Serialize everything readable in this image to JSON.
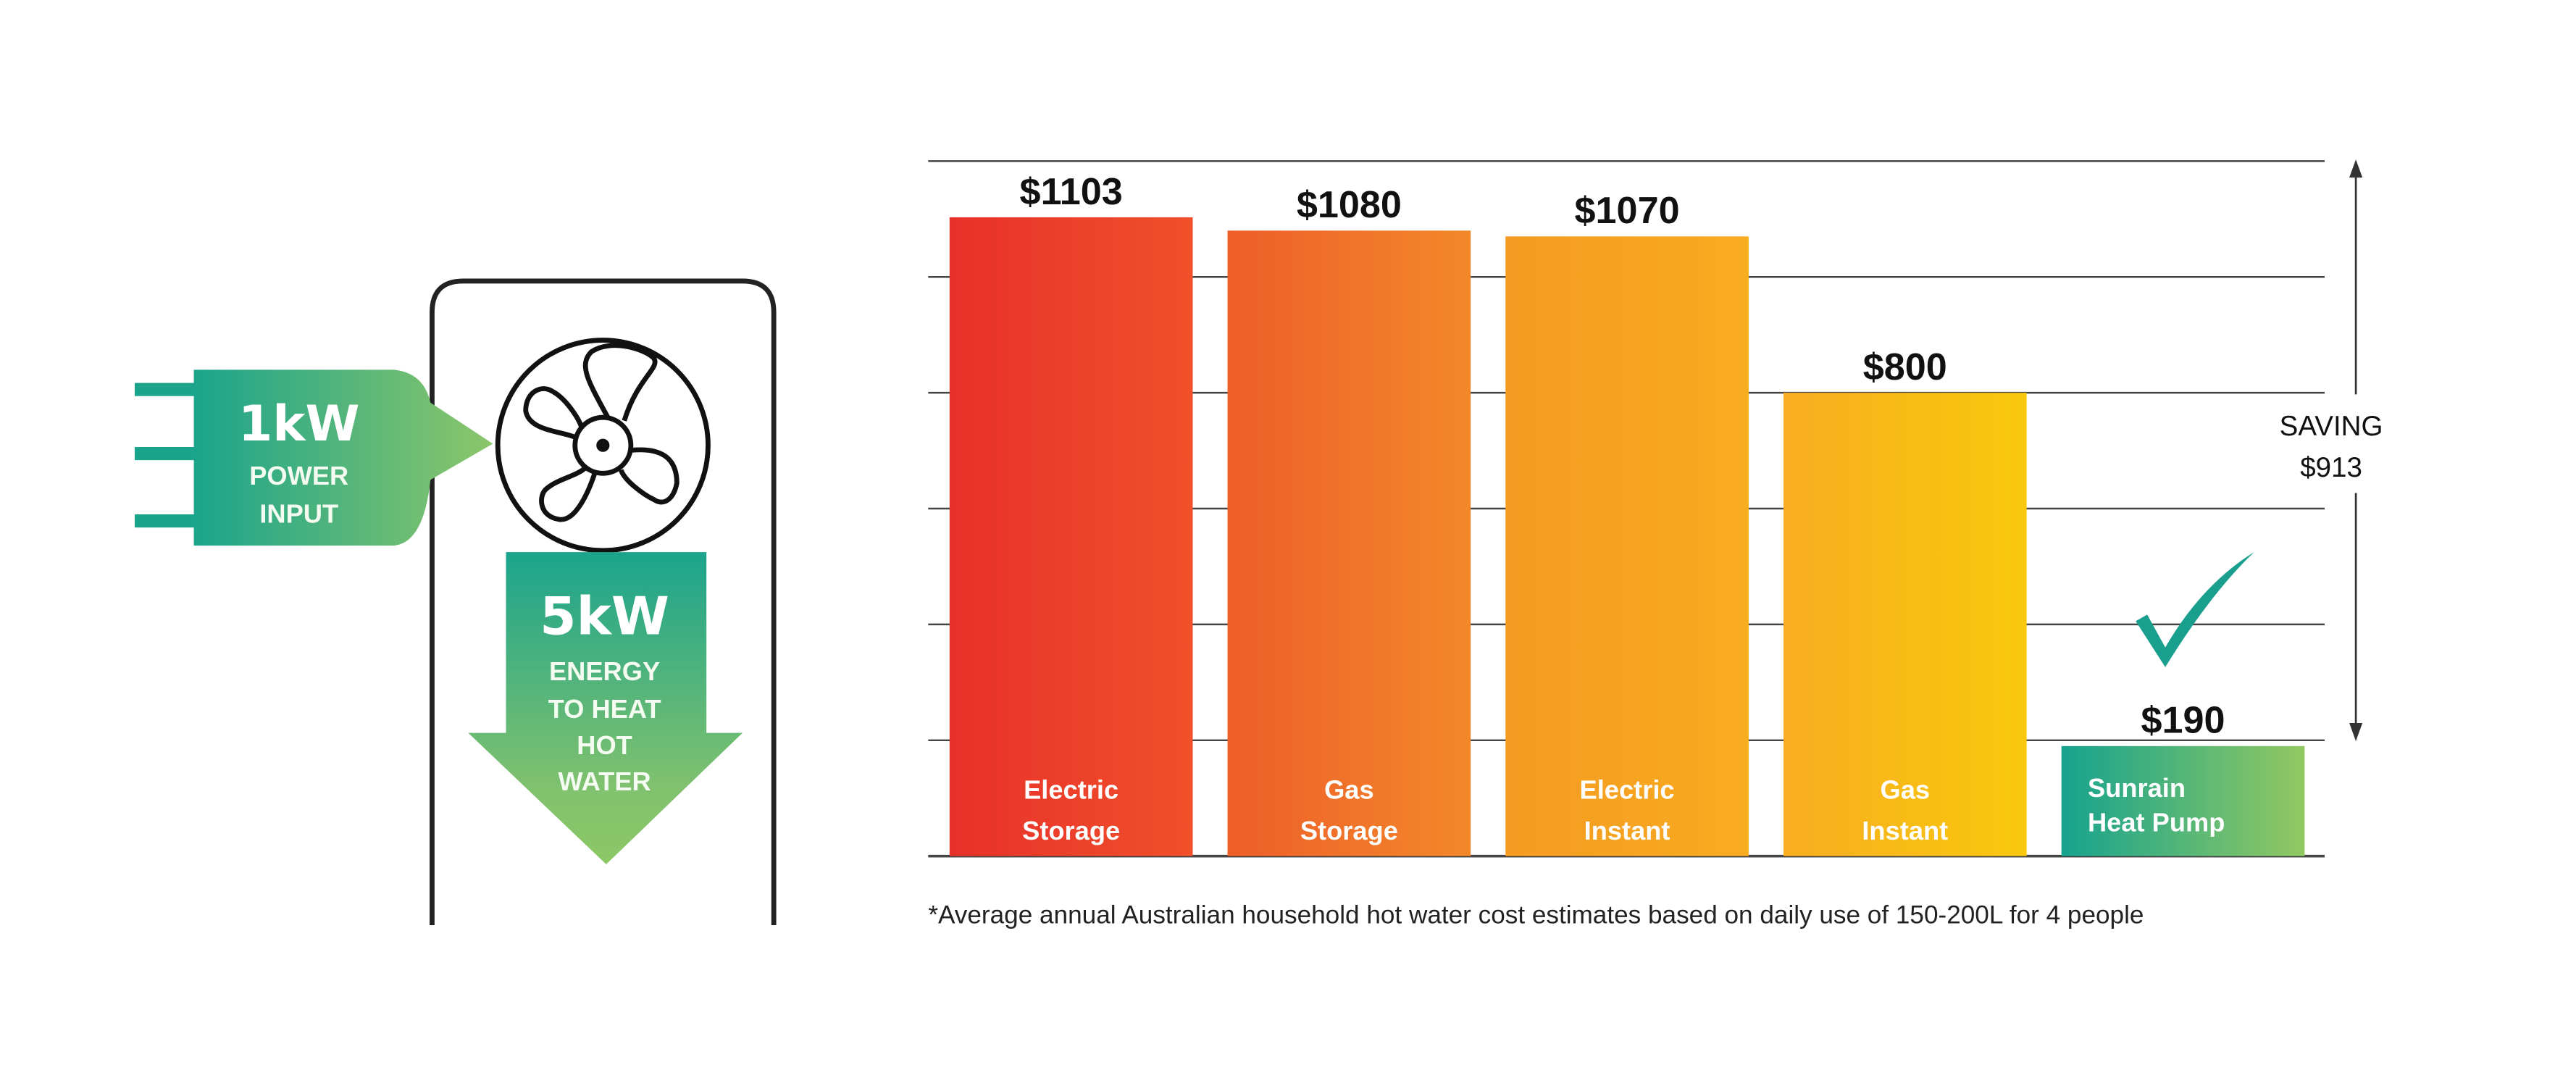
{
  "diagram": {
    "input_value": "1kW",
    "input_line1": "POWER",
    "input_line2": "INPUT",
    "output_value": "5kW",
    "output_line1": "ENERGY",
    "output_line2": "TO HEAT",
    "output_line3": "HOT",
    "output_line4": "WATER"
  },
  "chart_data": {
    "type": "bar",
    "title": "",
    "xlabel": "",
    "ylabel": "",
    "ylim": [
      0,
      1200
    ],
    "grid": true,
    "categories": [
      [
        "Electric",
        "Storage"
      ],
      [
        "Gas",
        "Storage"
      ],
      [
        "Electric",
        "Instant"
      ],
      [
        "Gas",
        "Instant"
      ],
      [
        "Sunrain",
        "Heat Pump"
      ]
    ],
    "values": [
      1103,
      1080,
      1070,
      800,
      190
    ],
    "value_labels": [
      "$1103",
      "$1080",
      "$1070",
      "$800",
      "$190"
    ],
    "colors": [
      [
        "#e8302a",
        "#f0502a"
      ],
      [
        "#ee5e28",
        "#f2882a"
      ],
      [
        "#f59a22",
        "#f8ac20"
      ],
      [
        "#f8ae20",
        "#f9c80c"
      ],
      [
        "#16a38e",
        "#92c862"
      ]
    ],
    "annotation": {
      "line1": "SAVING",
      "line2": "$913"
    },
    "checkmark_color": "#1a9e8e",
    "footnote": "*Average annual Australian household hot water cost estimates based on daily use of 150-200L for 4 people"
  }
}
